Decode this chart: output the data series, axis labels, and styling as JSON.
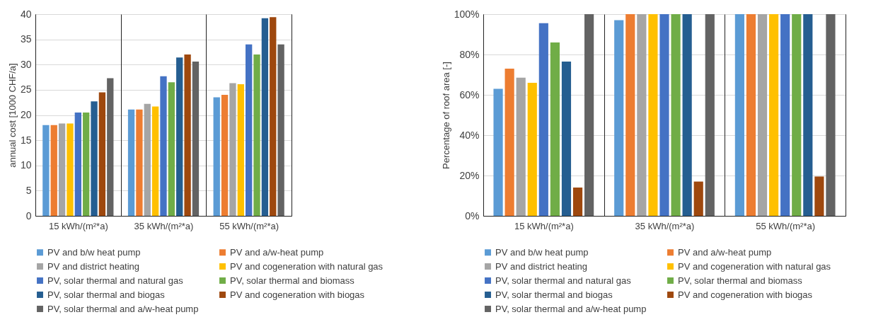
{
  "chart_data": [
    {
      "type": "bar",
      "ylabel": "annual cost [1000 CHF/a]",
      "categories": [
        "15 kWh/(m²*a)",
        "35 kWh/(m²*a)",
        "55 kWh/(m²*a)"
      ],
      "ylim": [
        0,
        40
      ],
      "yticks": [
        0,
        5,
        10,
        15,
        20,
        25,
        30,
        35,
        40
      ],
      "grid": "y",
      "legend": "bottom",
      "series": [
        {
          "name": "PV and b/w heat pump",
          "color": "#5b9bd5",
          "values": [
            18.0,
            21.1,
            23.5
          ]
        },
        {
          "name": "PV and a/w-heat pump",
          "color": "#ed7d31",
          "values": [
            18.0,
            21.1,
            24.0
          ]
        },
        {
          "name": "PV and district heating",
          "color": "#a5a5a5",
          "values": [
            18.3,
            22.2,
            26.3
          ]
        },
        {
          "name": "PV and cogeneration with natural gas",
          "color": "#ffc000",
          "values": [
            18.3,
            21.7,
            26.1
          ]
        },
        {
          "name": "PV, solar thermal and natural gas",
          "color": "#4472c4",
          "values": [
            20.5,
            27.7,
            34.0
          ]
        },
        {
          "name": "PV, solar thermal and biomass",
          "color": "#70ad47",
          "values": [
            20.5,
            26.5,
            32.0
          ]
        },
        {
          "name": "PV, solar thermal and biogas",
          "color": "#255e91",
          "values": [
            22.7,
            31.4,
            39.2
          ]
        },
        {
          "name": "PV and cogeneration with biogas",
          "color": "#9e480e",
          "values": [
            24.5,
            32.0,
            39.4
          ]
        },
        {
          "name": "PV, solar thermal and a/w-heat pump",
          "color": "#636363",
          "values": [
            27.3,
            30.6,
            34.0
          ]
        }
      ]
    },
    {
      "type": "bar",
      "ylabel": "Percentage of roof area [-]",
      "categories": [
        "15 kWh/(m²*a)",
        "35 kWh/(m²*a)",
        "55 kWh/(m²*a)"
      ],
      "ylim": [
        0,
        100
      ],
      "yticks": [
        {
          "value": 0,
          "label": "0%"
        },
        {
          "value": 20,
          "label": "20%"
        },
        {
          "value": 40,
          "label": "40%"
        },
        {
          "value": 60,
          "label": "60%"
        },
        {
          "value": 80,
          "label": "80%"
        },
        {
          "value": 100,
          "label": "100%"
        }
      ],
      "grid": "y",
      "legend": "bottom",
      "series": [
        {
          "name": "PV and b/w heat pump",
          "color": "#5b9bd5",
          "values": [
            63,
            97,
            100
          ]
        },
        {
          "name": "PV and a/w-heat pump",
          "color": "#ed7d31",
          "values": [
            73,
            100,
            100
          ]
        },
        {
          "name": "PV and district heating",
          "color": "#a5a5a5",
          "values": [
            68.5,
            100,
            100
          ]
        },
        {
          "name": "PV and cogeneration with natural gas",
          "color": "#ffc000",
          "values": [
            66,
            100,
            100
          ]
        },
        {
          "name": "PV, solar thermal and natural gas",
          "color": "#4472c4",
          "values": [
            95.5,
            100,
            100
          ]
        },
        {
          "name": "PV, solar thermal and biomass",
          "color": "#70ad47",
          "values": [
            86,
            100,
            100
          ]
        },
        {
          "name": "PV, solar thermal and biogas",
          "color": "#255e91",
          "values": [
            76.5,
            100,
            100
          ]
        },
        {
          "name": "PV and cogeneration with biogas",
          "color": "#9e480e",
          "values": [
            14,
            17,
            19.5
          ]
        },
        {
          "name": "PV, solar thermal and a/w-heat pump",
          "color": "#636363",
          "values": [
            100,
            100,
            100
          ]
        }
      ]
    }
  ]
}
